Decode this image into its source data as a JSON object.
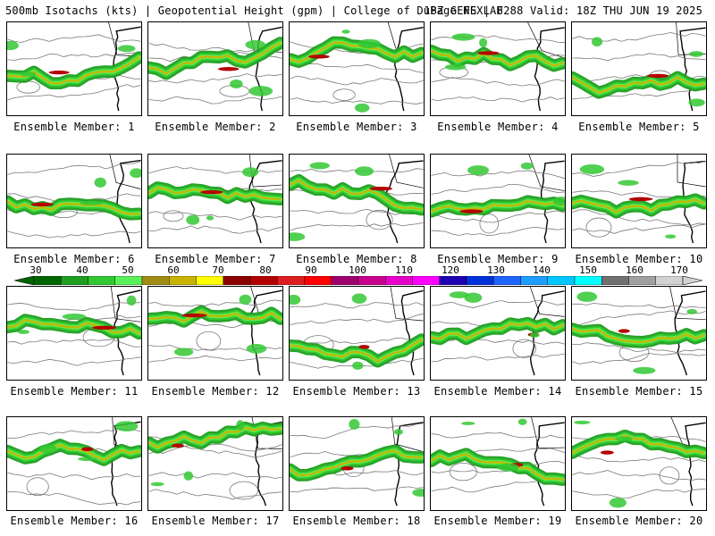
{
  "header": {
    "left": "500mb Isotachs (kts) | Geopotential Height (gpm) | College of DuPage NEXLAB",
    "right": "18Z GEFS | F288 Valid: 18Z THU JUN 19 2025"
  },
  "colorbar": {
    "labels": [
      "30",
      "40",
      "50",
      "60",
      "70",
      "80",
      "90",
      "100",
      "110",
      "120",
      "130",
      "140",
      "150",
      "160",
      "170"
    ],
    "colors": [
      "#006400",
      "#1e9e1e",
      "#32c832",
      "#5af05a",
      "#a08c14",
      "#c8b400",
      "#ffff00",
      "#8b0000",
      "#b40000",
      "#dc1e1e",
      "#ff0000",
      "#a0006e",
      "#c8008c",
      "#e600c8",
      "#ff00ff",
      "#1e00b4",
      "#0032dc",
      "#1e64ff",
      "#1e9eff",
      "#00c8ff",
      "#00ffff",
      "#707070",
      "#a0a0a0",
      "#d2d2d2"
    ]
  },
  "members": [
    {
      "caption": "Ensemble Member: 1"
    },
    {
      "caption": "Ensemble Member: 2"
    },
    {
      "caption": "Ensemble Member: 3"
    },
    {
      "caption": "Ensemble Member: 4"
    },
    {
      "caption": "Ensemble Member: 5"
    },
    {
      "caption": "Ensemble Member: 6"
    },
    {
      "caption": "Ensemble Member: 7"
    },
    {
      "caption": "Ensemble Member: 8"
    },
    {
      "caption": "Ensemble Member: 9"
    },
    {
      "caption": "Ensemble Member: 10"
    },
    {
      "caption": "Ensemble Member: 11"
    },
    {
      "caption": "Ensemble Member: 12"
    },
    {
      "caption": "Ensemble Member: 13"
    },
    {
      "caption": "Ensemble Member: 14"
    },
    {
      "caption": "Ensemble Member: 15"
    },
    {
      "caption": "Ensemble Member: 16"
    },
    {
      "caption": "Ensemble Member: 17"
    },
    {
      "caption": "Ensemble Member: 18"
    },
    {
      "caption": "Ensemble Member: 19"
    },
    {
      "caption": "Ensemble Member: 20"
    }
  ]
}
